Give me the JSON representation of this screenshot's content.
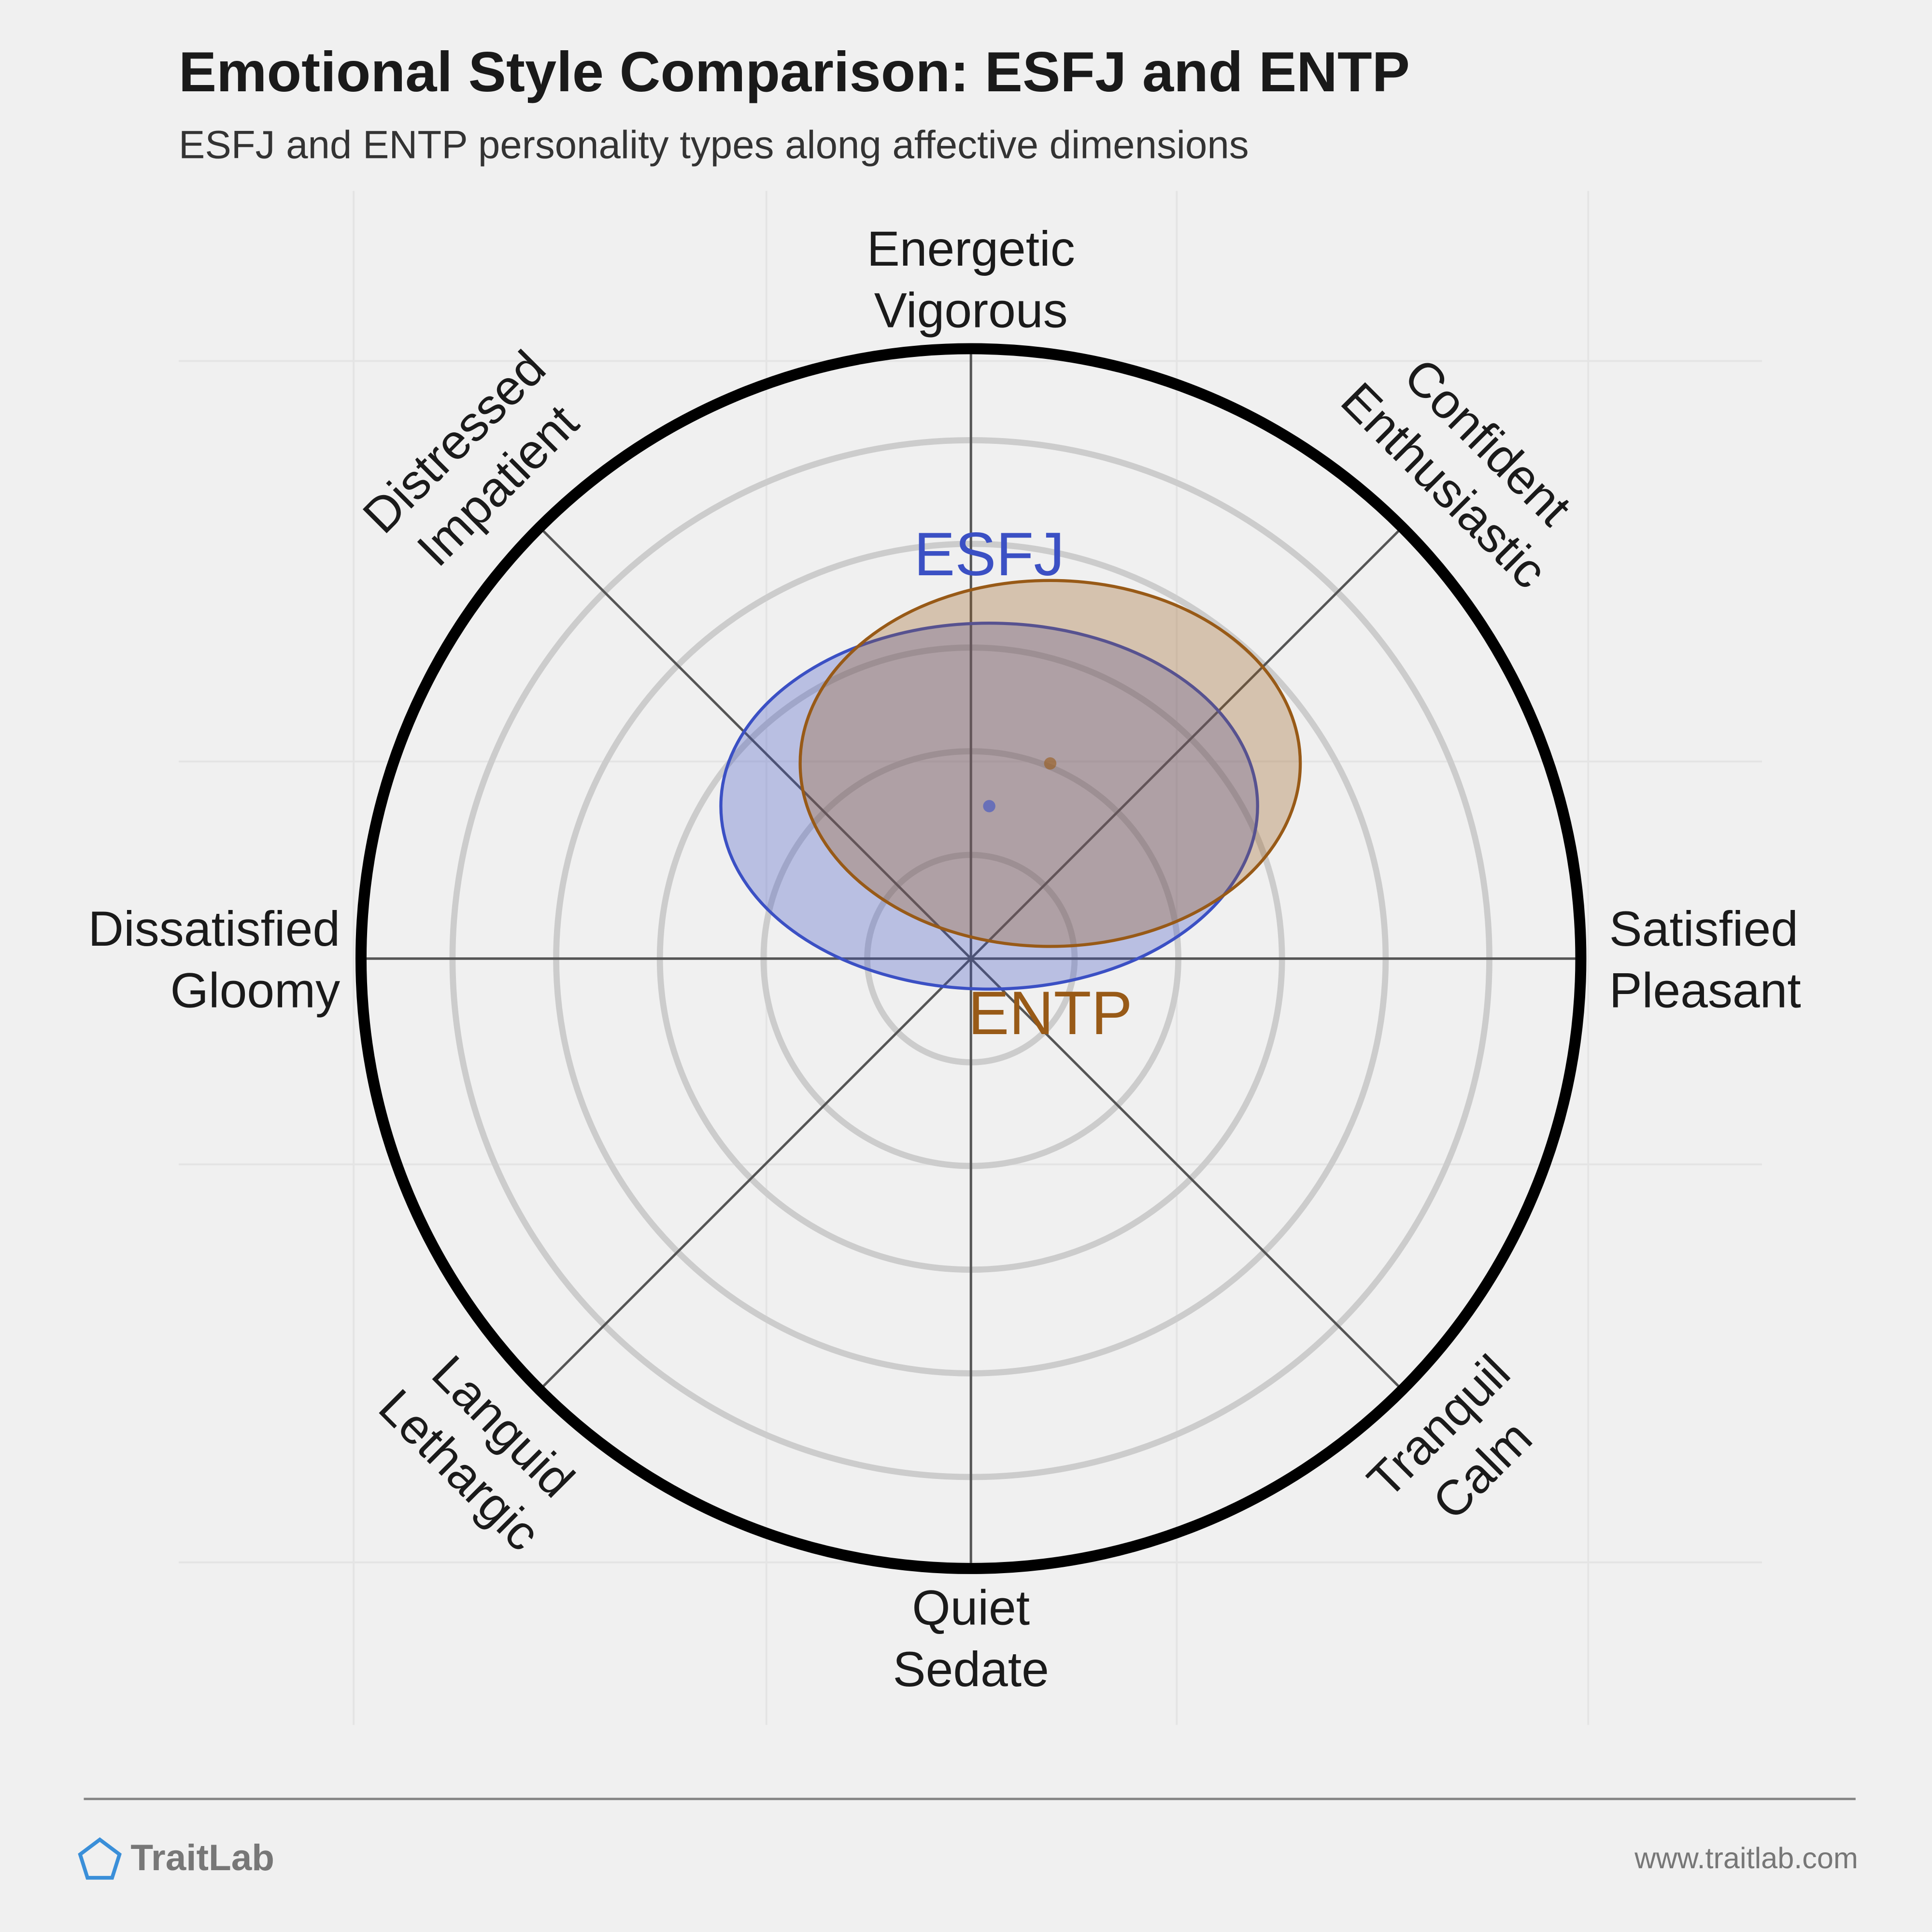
{
  "chart_data": {
    "type": "affect-ellipse",
    "title": "Emotional Style Comparison: ESFJ and ENTP",
    "subtitle": "ESFJ and ENTP personality types along affective dimensions",
    "xlim": [
      -10,
      10
    ],
    "ylim": [
      -10,
      10
    ],
    "axes": [
      {
        "lines": [
          "Energetic",
          "Vigorous"
        ]
      },
      {
        "lines": [
          "Confident",
          "Enthusiastic"
        ]
      },
      {
        "lines": [
          "Satisfied",
          "Pleasant"
        ]
      },
      {
        "lines": [
          "Tranquil",
          "Calm"
        ]
      },
      {
        "lines": [
          "Quiet",
          "Sedate"
        ]
      },
      {
        "lines": [
          "Languid",
          "Lethargic"
        ]
      },
      {
        "lines": [
          "Dissatisfied",
          "Gloomy"
        ]
      },
      {
        "lines": [
          "Distressed",
          "Impatient"
        ]
      }
    ],
    "series": [
      {
        "name": "ESFJ",
        "color": "#3b50c4",
        "x": 0.3,
        "y": 2.5,
        "rx": 4.4,
        "ry": 3.0
      },
      {
        "name": "ENTP",
        "color": "#985a17",
        "x": 1.3,
        "y": 3.2,
        "rx": 4.1,
        "ry": 3.0
      }
    ]
  },
  "footer": {
    "brand": "TraitLab",
    "url": "www.traitlab.com"
  }
}
